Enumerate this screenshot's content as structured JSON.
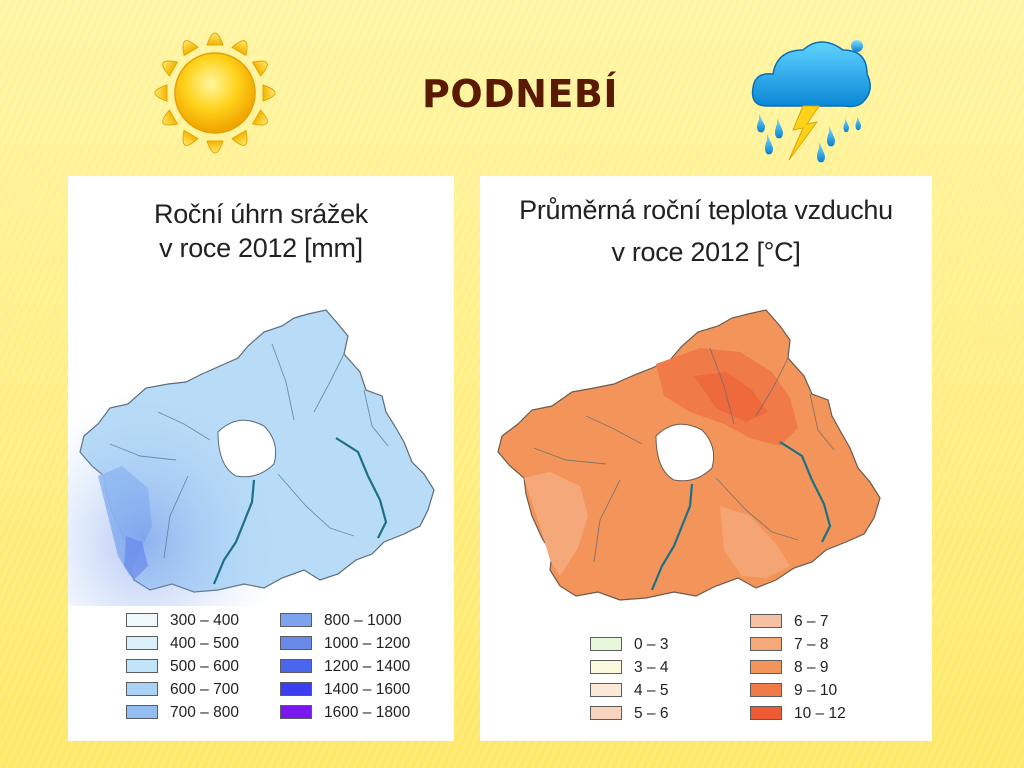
{
  "slide": {
    "title": "PODNEBÍ"
  },
  "icons": {
    "left": "sun-icon",
    "right": "rain-cloud-lightning-icon"
  },
  "maps": [
    {
      "title_line1": "Roční úhrn srážek",
      "title_line2": "v roce 2012 [mm]",
      "legend": [
        {
          "label": "300 – 400",
          "color": "#eef8fd"
        },
        {
          "label": "400 – 500",
          "color": "#d9f0fb"
        },
        {
          "label": "500 – 600",
          "color": "#c2e4f8"
        },
        {
          "label": "600 – 700",
          "color": "#a9d2f5"
        },
        {
          "label": "700 – 800",
          "color": "#93bdf1"
        },
        {
          "label": "800 – 1000",
          "color": "#7ea3ee"
        },
        {
          "label": "1000 – 1200",
          "color": "#6a8aea"
        },
        {
          "label": "1200 – 1400",
          "color": "#4a66ec"
        },
        {
          "label": "1400 – 1600",
          "color": "#3a3ef0"
        },
        {
          "label": "1600 – 1800",
          "color": "#7a16f0"
        }
      ]
    },
    {
      "title_line1": "Průměrná roční teplota vzduchu",
      "title_line2": "v roce 2012 [°C]",
      "legend": [
        {
          "label": "0 – 3",
          "color": "#e7f7d9"
        },
        {
          "label": "3 – 4",
          "color": "#fbf8dd"
        },
        {
          "label": "4 – 5",
          "color": "#fbe8d6"
        },
        {
          "label": "5 – 6",
          "color": "#f8d3bd"
        },
        {
          "label": "6 – 7",
          "color": "#f6c1a3"
        },
        {
          "label": "7 – 8",
          "color": "#f5a87a"
        },
        {
          "label": "8 – 9",
          "color": "#f3955a"
        },
        {
          "label": "9 – 10",
          "color": "#f07a48"
        },
        {
          "label": "10 – 12",
          "color": "#ee5a34"
        }
      ]
    }
  ]
}
